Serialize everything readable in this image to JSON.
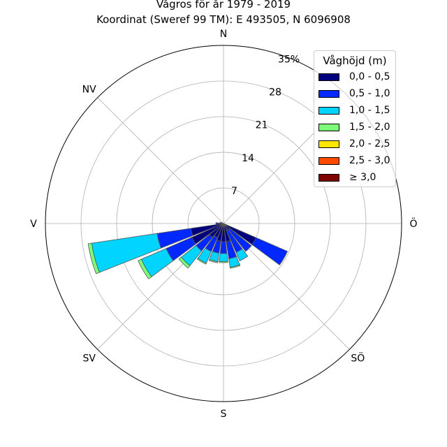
{
  "title": "Vågros för år 1979 - 2019",
  "subtitle": "Koordinat (Sweref 99 TM): E 493505, N 6096908",
  "chart_data": {
    "type": "bar",
    "polar": true,
    "stacked": true,
    "title": "Vågros för år 1979 - 2019",
    "subtitle": "Koordinat (Sweref 99 TM): E 493505, N 6096908",
    "directions": [
      "N",
      "NV",
      "V",
      "SV",
      "S",
      "SÖ",
      "Ö"
    ],
    "radial_ticks": [
      "7",
      "14",
      "21",
      "28",
      "35%"
    ],
    "rmax": 35,
    "grid": true,
    "legend": {
      "title": "Våghöjd (m)",
      "placement": "top-right",
      "entries": [
        "0,0 - 0,5",
        "0,5 - 1,0",
        "1,0 - 1,5",
        "1,5 - 2,0",
        "2,0 - 2,5",
        "2,5 - 3,0",
        "≥ 3,0"
      ],
      "colors": [
        "#00007f",
        "#0028ff",
        "#00d4ff",
        "#7dff7a",
        "#ffe500",
        "#ff4a00",
        "#7f0000"
      ]
    },
    "sectors": [
      {
        "direction_deg": 120,
        "values": [
          7.0,
          6.7,
          0.0,
          0.0,
          0.0,
          0.0,
          0.0
        ]
      },
      {
        "direction_deg": 135,
        "values": [
          1.6,
          5.4,
          0.0,
          0.0,
          0.0,
          0.0,
          0.0
        ]
      },
      {
        "direction_deg": 150,
        "values": [
          1.4,
          4.8,
          1.8,
          0.0,
          0.0,
          0.0,
          0.0
        ]
      },
      {
        "direction_deg": 165,
        "values": [
          3.6,
          3.4,
          1.7,
          0.2,
          0.0,
          0.0,
          0.0
        ]
      },
      {
        "direction_deg": 180,
        "values": [
          3.6,
          2.3,
          1.6,
          0.2,
          0.0,
          0.0,
          0.0
        ]
      },
      {
        "direction_deg": 195,
        "values": [
          3.5,
          2.4,
          1.7,
          0.2,
          0.0,
          0.0,
          0.0
        ]
      },
      {
        "direction_deg": 210,
        "values": [
          3.0,
          3.0,
          2.5,
          0.2,
          0.0,
          0.0,
          0.0
        ]
      },
      {
        "direction_deg": 225,
        "values": [
          3.5,
          3.4,
          3.7,
          0.6,
          0.0,
          0.0,
          0.0
        ]
      },
      {
        "direction_deg": 240,
        "values": [
          6.8,
          5.5,
          5.3,
          0.7,
          0.0,
          0.0,
          0.0
        ]
      },
      {
        "direction_deg": 255,
        "values": [
          6.5,
          6.7,
          13.0,
          0.7,
          0.0,
          0.0,
          0.0
        ]
      },
      {
        "direction_deg": 270,
        "values": [
          1.0,
          0.5,
          0.0,
          0.0,
          0.0,
          0.0,
          0.0
        ]
      },
      {
        "direction_deg": 285,
        "values": [
          0.5,
          0.2,
          0.0,
          0.0,
          0.0,
          0.0,
          0.0
        ]
      }
    ]
  }
}
